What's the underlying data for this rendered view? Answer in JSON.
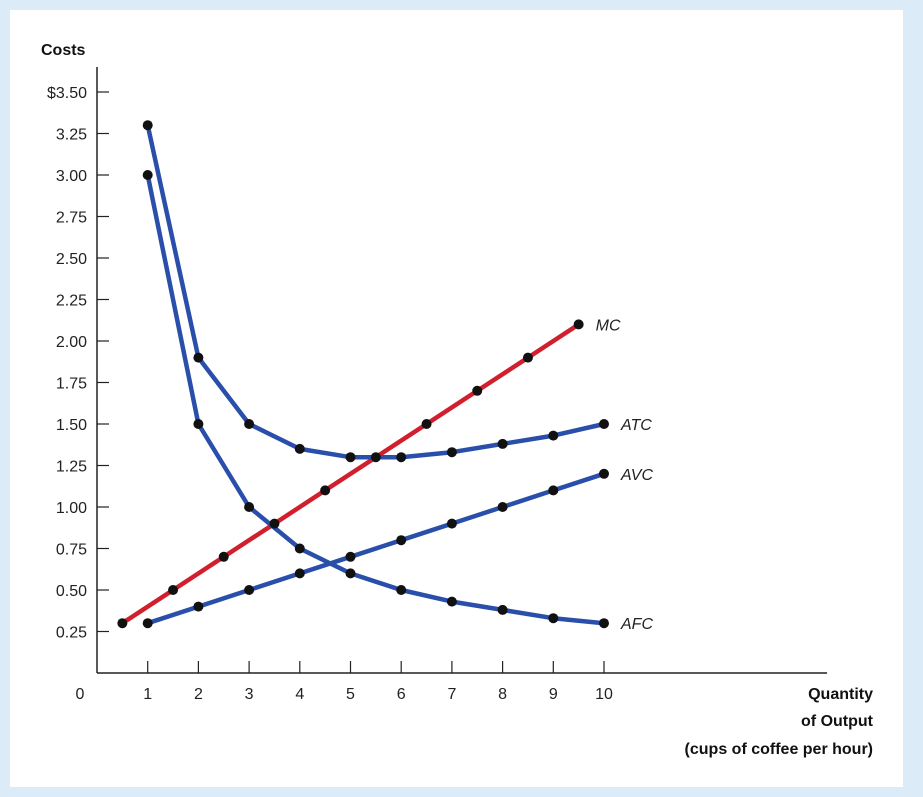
{
  "chart_data": {
    "type": "line",
    "title": "",
    "ylabel": "Costs",
    "xlabel_lines": [
      "Quantity",
      "of Output",
      "(cups of coffee per hour)"
    ],
    "origin_label": "0",
    "xlim": [
      0,
      14.4
    ],
    "ylim": [
      0,
      3.5
    ],
    "x_ticks": [
      1,
      2,
      3,
      4,
      5,
      6,
      7,
      8,
      9,
      10
    ],
    "x_tick_labels": [
      "1",
      "2",
      "3",
      "4",
      "5",
      "6",
      "7",
      "8",
      "9",
      "10"
    ],
    "y_ticks": [
      0.25,
      0.5,
      0.75,
      1.0,
      1.25,
      1.5,
      1.75,
      2.0,
      2.25,
      2.5,
      2.75,
      3.0,
      3.25,
      3.5
    ],
    "y_tick_labels": [
      "0.25",
      "0.50",
      "0.75",
      "1.00",
      "1.25",
      "1.50",
      "1.75",
      "2.00",
      "2.25",
      "2.50",
      "2.75",
      "3.00",
      "3.25",
      "$3.50"
    ],
    "grid": false,
    "series": [
      {
        "name": "MC",
        "color": "#d11f2e",
        "x": [
          0.5,
          1.5,
          2.5,
          3.5,
          4.5,
          5.5,
          6.5,
          7.5,
          8.5,
          9.5
        ],
        "y": [
          0.3,
          0.5,
          0.7,
          0.9,
          1.1,
          1.3,
          1.5,
          1.7,
          1.9,
          2.1
        ]
      },
      {
        "name": "ATC",
        "color": "#2a4faa",
        "x": [
          1,
          2,
          3,
          4,
          5,
          6,
          7,
          8,
          9,
          10
        ],
        "y": [
          3.3,
          1.9,
          1.5,
          1.35,
          1.3,
          1.3,
          1.33,
          1.38,
          1.43,
          1.5
        ]
      },
      {
        "name": "AVC",
        "color": "#2a4faa",
        "x": [
          1,
          2,
          3,
          4,
          5,
          6,
          7,
          8,
          9,
          10
        ],
        "y": [
          0.3,
          0.4,
          0.5,
          0.6,
          0.7,
          0.8,
          0.9,
          1.0,
          1.1,
          1.2
        ]
      },
      {
        "name": "AFC",
        "color": "#2a4faa",
        "x": [
          1,
          2,
          3,
          4,
          5,
          6,
          7,
          8,
          9,
          10
        ],
        "y": [
          3.0,
          1.5,
          1.0,
          0.75,
          0.6,
          0.5,
          0.43,
          0.38,
          0.33,
          0.3
        ]
      }
    ],
    "marker_color": "#111111",
    "axis_color": "#222222"
  }
}
